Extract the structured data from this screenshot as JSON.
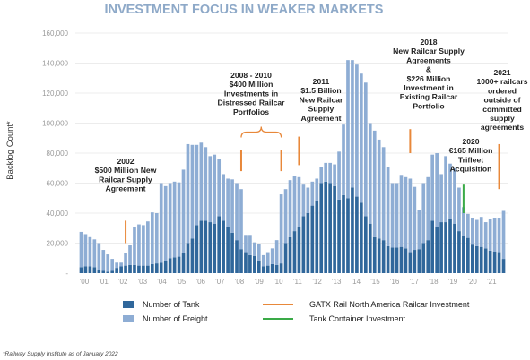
{
  "chart_data": {
    "type": "bar",
    "stacked": true,
    "title": "INVESTMENT FOCUS IN WEAKER MARKETS",
    "ylabel": "Backlog Count*",
    "xlabel": "",
    "ylim": [
      0,
      160000
    ],
    "yticks": [
      "-",
      "20,000",
      "40,000",
      "60,000",
      "80,000",
      "100,000",
      "120,000",
      "140,000",
      "160,000"
    ],
    "year_labels": [
      "'00",
      "'01",
      "'02",
      "'03",
      "'04",
      "'05",
      "'06",
      "'07",
      "'08",
      "'09",
      "'10",
      "'11",
      "'12",
      "'13",
      "'14",
      "'15",
      "'16",
      "'17",
      "'18",
      "'19",
      "'20",
      "'21"
    ],
    "colors": {
      "tank": "#30679b",
      "freight": "#8eadd4",
      "gatx": "#e8883a",
      "tank_container": "#3aaa47"
    },
    "series": [
      {
        "name": "Number of Tank",
        "values": [
          4000,
          4500,
          4500,
          4000,
          2000,
          1500,
          1000,
          1500,
          3500,
          4500,
          5000,
          5500,
          5500,
          5000,
          5000,
          5000,
          6000,
          6500,
          7000,
          8000,
          10000,
          10500,
          11000,
          13500,
          20000,
          23000,
          32000,
          35000,
          35000,
          34000,
          33000,
          38000,
          35000,
          31000,
          27000,
          22000,
          16000,
          14000,
          12000,
          11500,
          8500,
          4500,
          5000,
          6000,
          5500,
          6500,
          20000,
          24000,
          28000,
          31000,
          38000,
          40000,
          45000,
          48000,
          60000,
          61000,
          60000,
          58000,
          49000,
          52000,
          50000,
          57000,
          51000,
          47000,
          38000,
          33000,
          24000,
          23000,
          22000,
          18000,
          17000,
          17000,
          17500,
          16500,
          14000,
          15500,
          16000,
          20000,
          22000,
          35000,
          31000,
          34000,
          34000,
          36000,
          33000,
          28000,
          25000,
          23500,
          19000,
          18000,
          17500,
          16500,
          15000,
          14500,
          14000,
          9500
        ]
      },
      {
        "name": "Number of Freight",
        "values": [
          23500,
          21500,
          19500,
          18500,
          18000,
          14000,
          11500,
          8000,
          3500,
          2500,
          8500,
          13000,
          25500,
          27500,
          27000,
          29500,
          34500,
          33500,
          53000,
          50000,
          50000,
          50500,
          49500,
          55500,
          66000,
          62500,
          53500,
          52000,
          49000,
          44000,
          46000,
          38000,
          31000,
          32000,
          35500,
          38000,
          40000,
          11500,
          13500,
          9000,
          11000,
          7500,
          9000,
          10500,
          16500,
          46000,
          36000,
          38000,
          37000,
          33000,
          21000,
          17000,
          16000,
          15000,
          11000,
          12500,
          13500,
          14500,
          32000,
          47000,
          92000,
          85000,
          88000,
          86000,
          89000,
          67000,
          71000,
          66000,
          62000,
          53000,
          43000,
          43000,
          48000,
          47500,
          49000,
          42000,
          26000,
          40000,
          42000,
          44000,
          49000,
          32000,
          44000,
          37000,
          37000,
          29000,
          19000,
          16000,
          18000,
          17500,
          20000,
          17500,
          21000,
          22500,
          23000,
          32000
        ]
      }
    ],
    "legend_position": "bottom",
    "legend": [
      "Number of Tank",
      "Number of Freight",
      "GATX Rail North America Railcar Investment",
      "Tank Container Investment"
    ],
    "annotations": [
      "2002\n$500 Million New\nRailcar Supply\nAgreement",
      "2008 - 2010\n$400 Million\nInvestments in\nDistressed Railcar\nPortfolios",
      "2011\n$1.5 Billion\nNew Railcar\nSupply\nAgreement",
      "2018\nNew Railcar Supply\nAgreements\n&\n$226 Million\nInvestment in\nExisting Railcar\nPortfolio",
      "2020\n€165 Million\nTrifleet\nAcquisition",
      "2021\n1000+ railcars\nordered\noutside of\ncommitted\nsupply\nagreements"
    ]
  },
  "footnote": "*Railway Supply Institute as of January 2022"
}
